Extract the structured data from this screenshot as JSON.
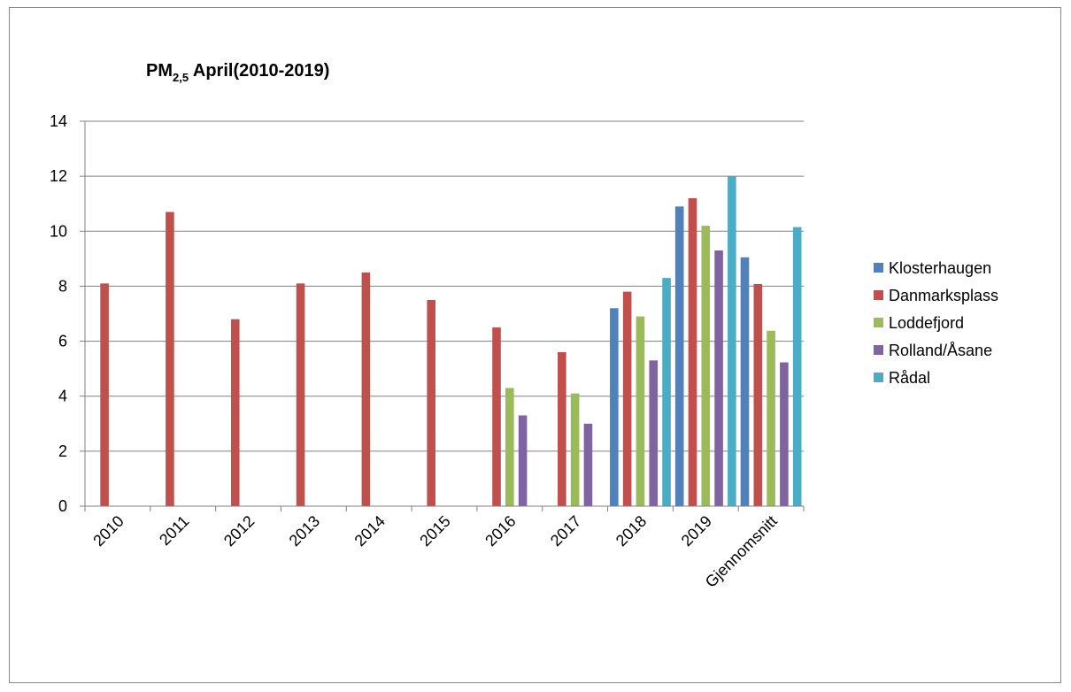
{
  "chart_data": {
    "type": "bar",
    "title": {
      "main": "PM",
      "sub": "2,5",
      "rest": " April(2010-2019)"
    },
    "xlabel": "",
    "ylabel": "",
    "categories": [
      "2010",
      "2011",
      "2012",
      "2013",
      "2014",
      "2015",
      "2016",
      "2017",
      "2018",
      "2019",
      "Gjennomsnitt"
    ],
    "ylim": [
      0,
      14
    ],
    "yticks": [
      0,
      2,
      4,
      6,
      8,
      10,
      12,
      14
    ],
    "grid": true,
    "legend_position": "right",
    "series": [
      {
        "name": "Klosterhaugen",
        "color": "#4F81BD",
        "values": [
          null,
          null,
          null,
          null,
          null,
          null,
          null,
          null,
          7.2,
          10.9,
          9.05
        ]
      },
      {
        "name": "Danmarksplass",
        "color": "#C0504D",
        "values": [
          8.1,
          10.7,
          6.8,
          8.1,
          8.5,
          7.5,
          6.5,
          5.6,
          7.8,
          11.2,
          8.08
        ]
      },
      {
        "name": "Loddefjord",
        "color": "#9BBB59",
        "values": [
          null,
          null,
          null,
          null,
          null,
          null,
          4.3,
          4.1,
          6.9,
          10.2,
          6.38
        ]
      },
      {
        "name": "Rolland/Åsane",
        "color": "#8064A2",
        "values": [
          null,
          null,
          null,
          null,
          null,
          null,
          3.3,
          3.0,
          5.3,
          9.3,
          5.23
        ]
      },
      {
        "name": "Rådal",
        "color": "#4BACC6",
        "values": [
          null,
          null,
          null,
          null,
          null,
          null,
          null,
          null,
          8.3,
          12.0,
          10.15
        ]
      }
    ]
  }
}
